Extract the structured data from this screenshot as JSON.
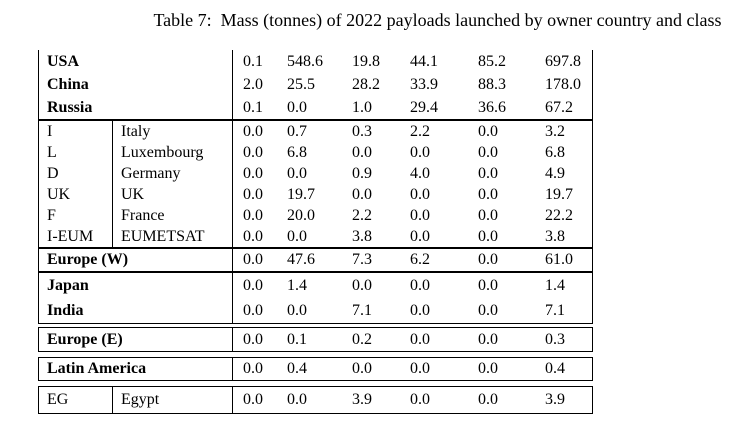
{
  "title": "Table 7:  Mass (tonnes) of 2022 payloads launched by owner country and class",
  "table": {
    "blocks": [
      {
        "id": "majors",
        "split": false,
        "rows": [
          {
            "label": "USA",
            "values": [
              "0.1",
              "548.6",
              "19.8",
              "44.1",
              "85.2",
              "697.8"
            ]
          },
          {
            "label": "China",
            "values": [
              "2.0",
              "25.5",
              "28.2",
              "33.9",
              "88.3",
              "178.0"
            ]
          },
          {
            "label": "Russia",
            "values": [
              "0.1",
              "0.0",
              "1.0",
              "29.4",
              "36.6",
              "67.2"
            ]
          }
        ]
      },
      {
        "id": "europe-w-members",
        "split": true,
        "rows": [
          {
            "code": "I",
            "name": "Italy",
            "values": [
              "0.0",
              "0.7",
              "0.3",
              "2.2",
              "0.0",
              "3.2"
            ]
          },
          {
            "code": "L",
            "name": "Luxembourg",
            "values": [
              "0.0",
              "6.8",
              "0.0",
              "0.0",
              "0.0",
              "6.8"
            ]
          },
          {
            "code": "D",
            "name": "Germany",
            "values": [
              "0.0",
              "0.0",
              "0.9",
              "4.0",
              "0.0",
              "4.9"
            ]
          },
          {
            "code": "UK",
            "name": "UK",
            "values": [
              "0.0",
              "19.7",
              "0.0",
              "0.0",
              "0.0",
              "19.7"
            ]
          },
          {
            "code": "F",
            "name": "France",
            "values": [
              "0.0",
              "20.0",
              "2.2",
              "0.0",
              "0.0",
              "22.2"
            ]
          },
          {
            "code": "I-EUM",
            "name": "EUMETSAT",
            "values": [
              "0.0",
              "0.0",
              "3.8",
              "0.0",
              "0.0",
              "3.8"
            ]
          }
        ]
      },
      {
        "id": "europe-w-total",
        "split": false,
        "rows": [
          {
            "label": "Europe (W)",
            "values": [
              "0.0",
              "47.6",
              "7.3",
              "6.2",
              "0.0",
              "61.0"
            ]
          }
        ]
      },
      {
        "id": "asia",
        "split": false,
        "rows": [
          {
            "label": "Japan",
            "values": [
              "0.0",
              "1.4",
              "0.0",
              "0.0",
              "0.0",
              "1.4"
            ]
          },
          {
            "label": "India",
            "values": [
              "0.0",
              "0.0",
              "7.1",
              "0.0",
              "0.0",
              "7.1"
            ]
          }
        ]
      },
      {
        "id": "europe-e",
        "split": false,
        "rows": [
          {
            "label": "Europe (E)",
            "values": [
              "0.0",
              "0.1",
              "0.2",
              "0.0",
              "0.0",
              "0.3"
            ]
          }
        ]
      },
      {
        "id": "latin-america",
        "split": false,
        "rows": [
          {
            "label": "Latin America",
            "values": [
              "0.0",
              "0.4",
              "0.0",
              "0.0",
              "0.0",
              "0.4"
            ]
          }
        ]
      },
      {
        "id": "egypt",
        "split": true,
        "rows": [
          {
            "code": "EG",
            "name": "Egypt",
            "values": [
              "0.0",
              "0.0",
              "3.9",
              "0.0",
              "0.0",
              "3.9"
            ]
          }
        ]
      }
    ]
  }
}
